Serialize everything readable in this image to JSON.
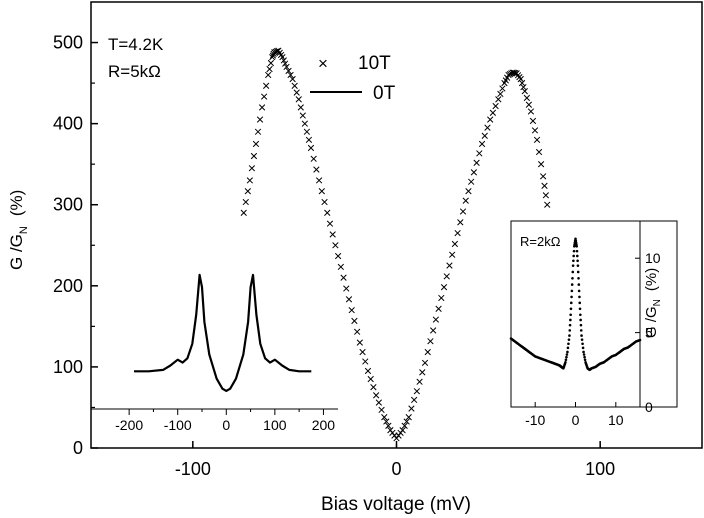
{
  "chart_data": [
    {
      "type": "scatter",
      "xlabel": "Bias voltage (mV)",
      "ylabel_main": "G /G",
      "ylabel_sub": "N",
      "ylabel_unit": "(%)",
      "xlim": [
        -150,
        150
      ],
      "ylim": [
        0,
        550
      ],
      "xticks": [
        -100,
        0,
        100
      ],
      "xtick_labels": [
        "-100",
        "0",
        "100"
      ],
      "yticks": [
        0,
        100,
        200,
        300,
        400,
        500
      ],
      "ytick_labels": [
        "0",
        "100",
        "200",
        "300",
        "400",
        "500"
      ],
      "annotations": {
        "temperature": "T=4.2K",
        "resistance": "R=5kΩ"
      },
      "legend": [
        {
          "marker": "×",
          "label": "10T"
        },
        {
          "marker": "line",
          "label": "0T"
        }
      ],
      "series": [
        {
          "name": "10T",
          "marker": "x",
          "points": [
            [
              -75,
              290
            ],
            [
              -72,
              330
            ],
            [
              -69,
              375
            ],
            [
              -66,
              420
            ],
            [
              -63,
              460
            ],
            [
              -61,
              482
            ],
            [
              -60,
              488
            ],
            [
              -58,
              490
            ],
            [
              -56,
              482
            ],
            [
              -54,
              470
            ],
            [
              -51,
              455
            ],
            [
              -48,
              430
            ],
            [
              -45,
              400
            ],
            [
              -42,
              370
            ],
            [
              -38,
              330
            ],
            [
              -34,
              290
            ],
            [
              -30,
              250
            ],
            [
              -26,
              210
            ],
            [
              -22,
              170
            ],
            [
              -18,
              130
            ],
            [
              -14,
              95
            ],
            [
              -10,
              65
            ],
            [
              -6,
              38
            ],
            [
              -3,
              22
            ],
            [
              0,
              12
            ],
            [
              3,
              22
            ],
            [
              6,
              38
            ],
            [
              10,
              70
            ],
            [
              14,
              105
            ],
            [
              18,
              145
            ],
            [
              22,
              185
            ],
            [
              26,
              225
            ],
            [
              30,
              265
            ],
            [
              34,
              305
            ],
            [
              38,
              340
            ],
            [
              42,
              375
            ],
            [
              46,
              405
            ],
            [
              50,
              430
            ],
            [
              53,
              450
            ],
            [
              55,
              460
            ],
            [
              57,
              463
            ],
            [
              59,
              462
            ],
            [
              61,
              455
            ],
            [
              63,
              440
            ],
            [
              66,
              415
            ],
            [
              69,
              380
            ],
            [
              72,
              335
            ],
            [
              74,
              300
            ]
          ]
        }
      ]
    },
    {
      "type": "line",
      "series": [
        {
          "name": "left inset",
          "points": [
            [
              -190,
              82
            ],
            [
              -160,
              82
            ],
            [
              -130,
              84
            ],
            [
              -115,
              90
            ],
            [
              -100,
              98
            ],
            [
              -90,
              94
            ],
            [
              -80,
              100
            ],
            [
              -70,
              120
            ],
            [
              -62,
              160
            ],
            [
              -55,
              215
            ],
            [
              -50,
              198
            ],
            [
              -45,
              150
            ],
            [
              -35,
              105
            ],
            [
              -20,
              72
            ],
            [
              -8,
              58
            ],
            [
              0,
              55
            ],
            [
              8,
              58
            ],
            [
              20,
              72
            ],
            [
              35,
              105
            ],
            [
              45,
              150
            ],
            [
              50,
              198
            ],
            [
              55,
              215
            ],
            [
              62,
              160
            ],
            [
              70,
              120
            ],
            [
              80,
              100
            ],
            [
              90,
              94
            ],
            [
              100,
              98
            ],
            [
              115,
              90
            ],
            [
              130,
              84
            ],
            [
              150,
              82
            ],
            [
              175,
              82
            ]
          ]
        }
      ],
      "xlim": [
        -260,
        230
      ],
      "xticks": [
        -200,
        -100,
        0,
        100,
        200
      ],
      "xtick_labels": [
        "-200",
        "-100",
        "0",
        "100",
        "200"
      ]
    },
    {
      "type": "scatter",
      "label": "R=2kΩ",
      "ylabel_main": "G /G",
      "ylabel_sub": "N",
      "ylabel_unit": "(%)",
      "xlim": [
        -16,
        16
      ],
      "ylim": [
        0,
        12.5
      ],
      "xticks": [
        -10,
        0,
        10
      ],
      "xtick_labels": [
        "-10",
        "0",
        "10"
      ],
      "yticks": [
        0,
        5,
        10
      ],
      "ytick_labels": [
        "0",
        "5",
        "10"
      ],
      "series": [
        {
          "name": "2kΩ",
          "points": [
            [
              -16,
              4.6
            ],
            [
              -15,
              4.4
            ],
            [
              -14,
              4.2
            ],
            [
              -13,
              4.0
            ],
            [
              -12,
              3.8
            ],
            [
              -11,
              3.6
            ],
            [
              -10,
              3.4
            ],
            [
              -9,
              3.3
            ],
            [
              -8,
              3.2
            ],
            [
              -7,
              3.1
            ],
            [
              -6,
              3.0
            ],
            [
              -5,
              2.9
            ],
            [
              -4,
              2.8
            ],
            [
              -3.5,
              2.7
            ],
            [
              -3,
              2.6
            ],
            [
              -2.5,
              3.0
            ],
            [
              -2,
              3.7
            ],
            [
              -1.5,
              4.8
            ],
            [
              -1.2,
              6.2
            ],
            [
              -0.9,
              7.8
            ],
            [
              -0.6,
              9.5
            ],
            [
              -0.3,
              10.8
            ],
            [
              0,
              11.3
            ],
            [
              0.3,
              10.8
            ],
            [
              0.6,
              9.5
            ],
            [
              0.9,
              7.8
            ],
            [
              1.2,
              6.2
            ],
            [
              1.5,
              4.8
            ],
            [
              2,
              3.7
            ],
            [
              2.5,
              3.0
            ],
            [
              3,
              2.6
            ],
            [
              3.5,
              2.5
            ],
            [
              4,
              2.6
            ],
            [
              5,
              2.7
            ],
            [
              6,
              2.9
            ],
            [
              7,
              3.0
            ],
            [
              8,
              3.2
            ],
            [
              9,
              3.4
            ],
            [
              10,
              3.5
            ],
            [
              11,
              3.7
            ],
            [
              12,
              3.9
            ],
            [
              13,
              4.0
            ],
            [
              14,
              4.2
            ],
            [
              15,
              4.4
            ],
            [
              16,
              4.5
            ]
          ]
        }
      ]
    }
  ]
}
